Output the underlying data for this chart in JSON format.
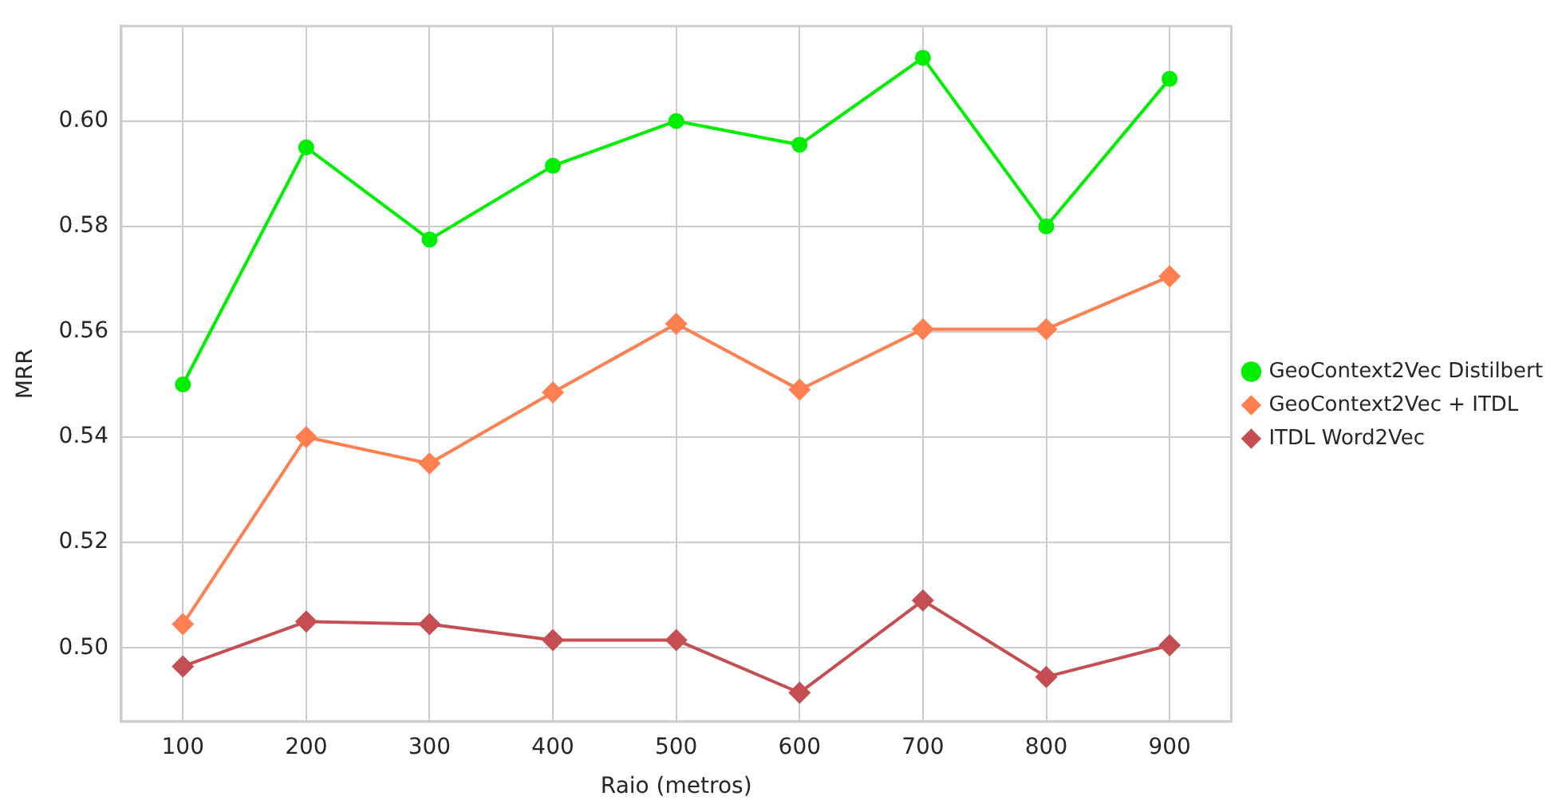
{
  "chart_data": {
    "type": "line",
    "xlabel": "Raio (metros)",
    "ylabel": "MRR",
    "categories": [
      "100",
      "200",
      "300",
      "400",
      "500",
      "600",
      "700",
      "800",
      "900"
    ],
    "series": [
      {
        "name": "GeoContext2Vec Distilbert",
        "color": "#00ee00",
        "marker": "circle",
        "values": [
          0.55,
          0.595,
          0.5775,
          0.5915,
          0.6,
          0.5955,
          0.612,
          0.58,
          0.608
        ]
      },
      {
        "name": "GeoContext2Vec + ITDL",
        "color": "#ff7f50",
        "marker": "diamond",
        "values": [
          0.5045,
          0.54,
          0.535,
          0.5485,
          0.5615,
          0.549,
          0.5605,
          0.5605,
          0.5705
        ]
      },
      {
        "name": "ITDL Word2Vec",
        "color": "#c44e52",
        "marker": "diamond",
        "values": [
          0.4965,
          0.505,
          0.5045,
          0.5015,
          0.5015,
          0.4915,
          0.509,
          0.4945,
          0.5005
        ]
      }
    ],
    "ylim": [
      0.486,
      0.618
    ],
    "yticks": [
      {
        "value": 0.5,
        "label": "0.50"
      },
      0.52,
      0.54,
      0.56,
      0.58,
      {
        "value": 0.6,
        "label": "0.60"
      }
    ],
    "grid": true,
    "legend": "right",
    "line_style": "solid"
  }
}
